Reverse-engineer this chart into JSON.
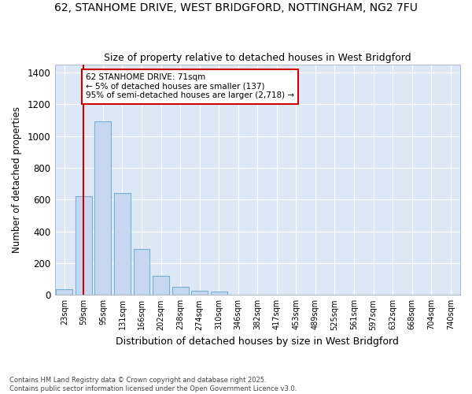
{
  "title_line1": "62, STANHOME DRIVE, WEST BRIDGFORD, NOTTINGHAM, NG2 7FU",
  "title_line2": "Size of property relative to detached houses in West Bridgford",
  "xlabel": "Distribution of detached houses by size in West Bridgford",
  "ylabel": "Number of detached properties",
  "categories": [
    "23sqm",
    "59sqm",
    "95sqm",
    "131sqm",
    "166sqm",
    "202sqm",
    "238sqm",
    "274sqm",
    "310sqm",
    "346sqm",
    "382sqm",
    "417sqm",
    "453sqm",
    "489sqm",
    "525sqm",
    "561sqm",
    "597sqm",
    "632sqm",
    "668sqm",
    "704sqm",
    "740sqm"
  ],
  "values": [
    35,
    620,
    1095,
    640,
    290,
    120,
    50,
    25,
    20,
    0,
    0,
    0,
    0,
    0,
    0,
    0,
    0,
    0,
    0,
    0,
    0
  ],
  "bar_color": "#c5d8f0",
  "bar_edge_color": "#7aafd4",
  "vline_x_idx": 1,
  "vline_color": "#cc0000",
  "annotation_text": "62 STANHOME DRIVE: 71sqm\n← 5% of detached houses are smaller (137)\n95% of semi-detached houses are larger (2,718) →",
  "annotation_box_color": "#ffffff",
  "annotation_box_edge": "#cc0000",
  "ylim": [
    0,
    1450
  ],
  "yticks": [
    0,
    200,
    400,
    600,
    800,
    1000,
    1200,
    1400
  ],
  "plot_bg_color": "#dce8f5",
  "fig_bg_color": "#ffffff",
  "grid_color": "#ffffff",
  "footer": "Contains HM Land Registry data © Crown copyright and database right 2025.\nContains public sector information licensed under the Open Government Licence v3.0."
}
